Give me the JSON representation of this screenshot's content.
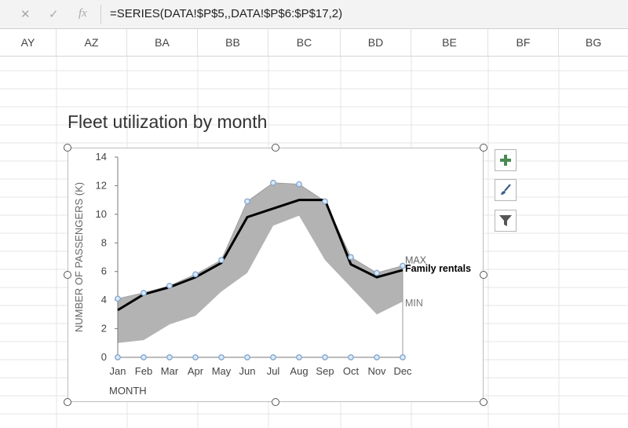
{
  "formula_bar": {
    "cancel_icon": "✕",
    "enter_icon": "✓",
    "function_icon": "fx",
    "formula": "=SERIES(DATA!$P$5,,DATA!$P$6:$P$17,2)"
  },
  "columns": [
    "AY",
    "AZ",
    "BA",
    "BB",
    "BC",
    "BD",
    "BE",
    "BF",
    "BG"
  ],
  "chart": {
    "title": "Fleet utilization by month",
    "side_buttons": [
      "plus-icon",
      "brush-icon",
      "filter-icon"
    ]
  },
  "colors": {
    "band": "#b3b3b3",
    "line": "#000000",
    "marker": "#7fa7d0",
    "axis": "#7a7a7a",
    "grid": "#e6e6e6"
  },
  "chart_data": {
    "type": "area",
    "title": "Fleet utilization by month",
    "xlabel": "MONTH",
    "ylabel": "NUMBER OF PASSENGERS (K)",
    "categories": [
      "Jan",
      "Feb",
      "Mar",
      "Apr",
      "May",
      "Jun",
      "Jul",
      "Aug",
      "Sep",
      "Oct",
      "Nov",
      "Dec"
    ],
    "ylim": [
      0,
      14
    ],
    "yticks": [
      "0",
      "2",
      "4",
      "6",
      "8",
      "10",
      "12",
      "14"
    ],
    "series": [
      {
        "name": "MAX",
        "values": [
          4.1,
          4.5,
          5.0,
          5.8,
          6.8,
          10.9,
          12.2,
          12.1,
          10.9,
          7.0,
          5.9,
          6.4
        ]
      },
      {
        "name": "Family rentals",
        "values": [
          3.3,
          4.4,
          4.9,
          5.6,
          6.6,
          9.8,
          10.4,
          11.0,
          11.0,
          6.5,
          5.6,
          6.1
        ]
      },
      {
        "name": "MIN",
        "values": [
          1.0,
          1.2,
          2.3,
          2.9,
          4.6,
          5.9,
          9.2,
          9.9,
          6.8,
          4.9,
          3.0,
          3.9
        ]
      }
    ],
    "grid": false,
    "legend": "inline-right"
  }
}
